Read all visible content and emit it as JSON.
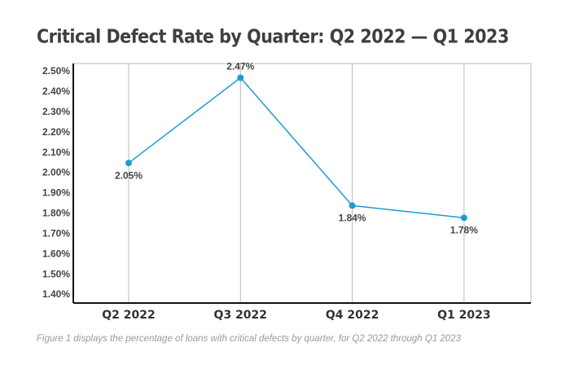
{
  "chart_data": {
    "type": "line",
    "title": "Critical Defect Rate by Quarter: Q2 2022 — Q1 2023",
    "caption": "Figure 1 displays the percentage of loans with critical defects by quarter, for Q2 2022 through Q1 2023",
    "categories": [
      "Q2 2022",
      "Q3 2022",
      "Q4 2022",
      "Q1 2023"
    ],
    "series": [
      {
        "color": "#1a9dd0",
        "values": [
          2.05,
          2.47,
          1.84,
          1.78
        ],
        "value_labels": [
          "2.05%",
          "2.47%",
          "1.84%",
          "1.78%"
        ]
      }
    ],
    "ylim": [
      1.36,
      2.54
    ],
    "yticks": [
      {
        "value": 1.4,
        "label": "1.40%"
      },
      {
        "value": 1.5,
        "label": "1.50%"
      },
      {
        "value": 1.6,
        "label": "1.60%"
      },
      {
        "value": 1.7,
        "label": "1.70%"
      },
      {
        "value": 1.8,
        "label": "1.80%"
      },
      {
        "value": 1.9,
        "label": "1.90%"
      },
      {
        "value": 2.0,
        "label": "2.00%"
      },
      {
        "value": 2.1,
        "label": "2.10%"
      },
      {
        "value": 2.2,
        "label": "2.20%"
      },
      {
        "value": 2.3,
        "label": "2.30%"
      },
      {
        "value": 2.4,
        "label": "2.40%"
      },
      {
        "value": 2.5,
        "label": "2.50%"
      }
    ],
    "grid": "x"
  }
}
